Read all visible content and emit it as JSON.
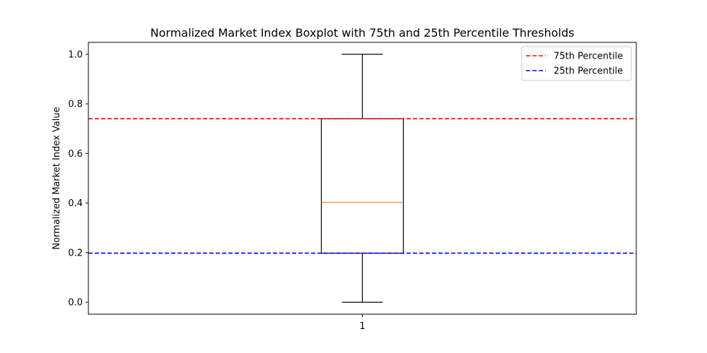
{
  "chart_data": {
    "type": "boxplot",
    "title": "Normalized Market Index Boxplot with 75th and 25th Percentile Thresholds",
    "xlabel": "",
    "ylabel": "Normalized Market Index Value",
    "categories": [
      "1"
    ],
    "ylim": [
      -0.048,
      1.048
    ],
    "yticks": [
      "0.0",
      "0.2",
      "0.4",
      "0.6",
      "0.8",
      "1.0"
    ],
    "grid": false,
    "legend_position": "top-right",
    "box": {
      "whisker_low": 0.0,
      "q1": 0.198,
      "median": 0.403,
      "q3": 0.74,
      "whisker_high": 1.0
    },
    "reference_lines": [
      {
        "name": "75th Percentile",
        "value": 0.74,
        "color": "#ff0000",
        "style": "dashed"
      },
      {
        "name": "25th Percentile",
        "value": 0.198,
        "color": "#0000ff",
        "style": "dashed"
      }
    ],
    "colors": {
      "box": "#000000",
      "median": "#ff7f0e"
    }
  }
}
